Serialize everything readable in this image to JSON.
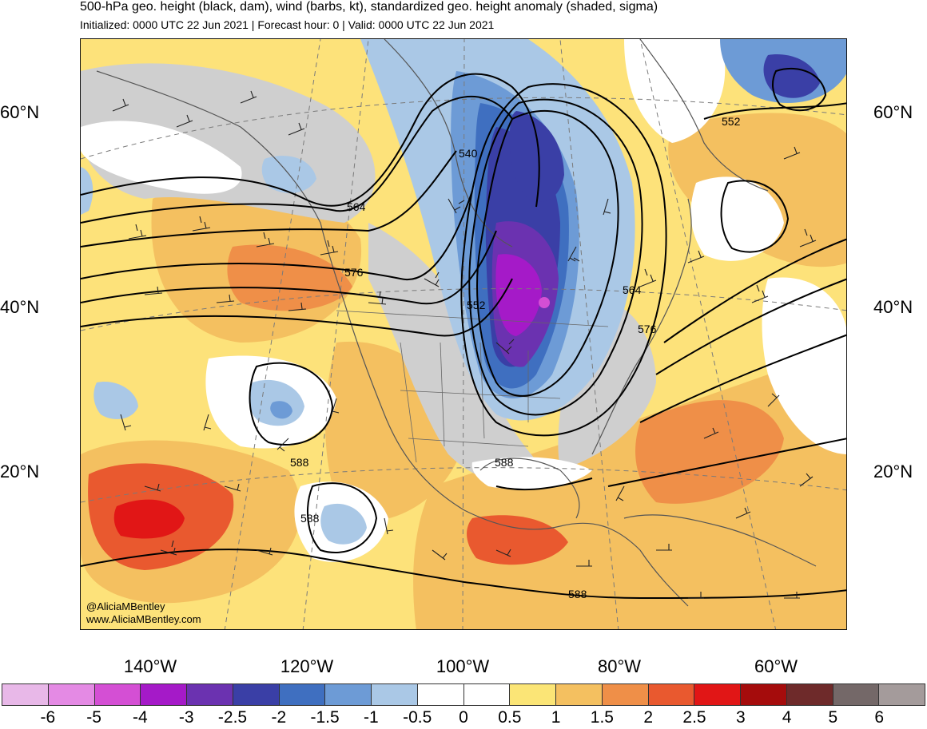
{
  "header": {
    "title": "500-hPa geo. height (black, dam), wind (barbs, kt), standardized geo. height anomaly (shaded, sigma)",
    "subtitle": "Initialized: 0000 UTC 22 Jun 2021 | Forecast hour: 0 | Valid: 0000 UTC 22 Jun 2021"
  },
  "map": {
    "lat_labels": [
      "60°N",
      "40°N",
      "20°N"
    ],
    "lon_labels": [
      "140°W",
      "120°W",
      "100°W",
      "80°W",
      "60°W"
    ],
    "contour_labels": [
      "540",
      "552",
      "564",
      "576",
      "588",
      "552",
      "564",
      "576",
      "588",
      "588",
      "588",
      "564",
      "552"
    ],
    "credits": [
      "@AliciaMBentley",
      "www.AliciaMBentley.com"
    ]
  },
  "colorbar": {
    "colors": [
      "#e8b8e8",
      "#e48ae4",
      "#d44fd4",
      "#a51ac8",
      "#6b32b0",
      "#3a3fa6",
      "#3f6fc0",
      "#6d9bd6",
      "#aac8e6",
      "#ffffff",
      "#ffffff",
      "#fbe576",
      "#f4c060",
      "#ef8f48",
      "#e9592f",
      "#e11616",
      "#a50c0c",
      "#6e2a2a",
      "#746868",
      "#a49b9b"
    ],
    "labels": [
      "-6",
      "-5",
      "-4",
      "-3",
      "-2.5",
      "-2",
      "-1.5",
      "-1",
      "-0.5",
      "0",
      "0.5",
      "1",
      "1.5",
      "2",
      "2.5",
      "3",
      "4",
      "5",
      "6"
    ]
  }
}
